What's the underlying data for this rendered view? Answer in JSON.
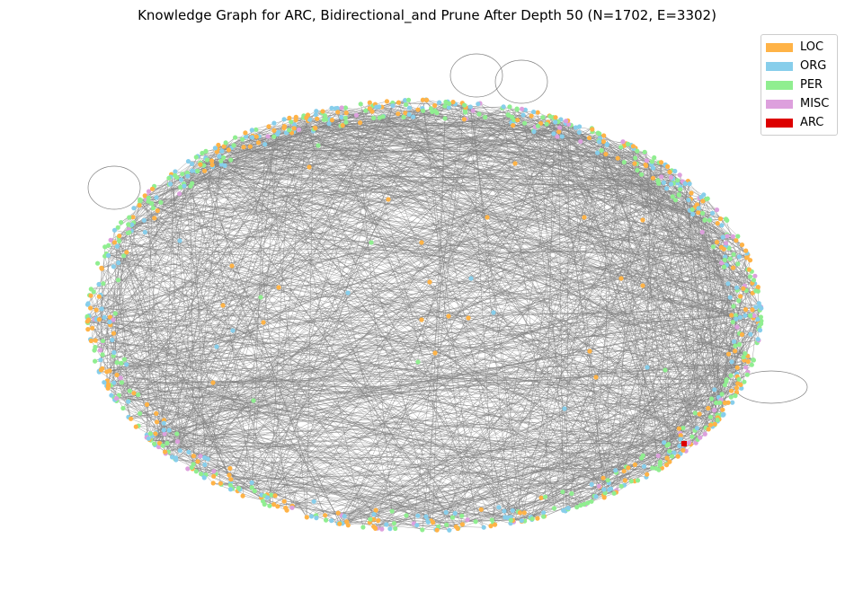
{
  "title": "Knowledge Graph for ARC, Bidirectional_and Prune After Depth 50 (N=1702, E=3302)",
  "graph": {
    "layout": "ellipse",
    "node_count": 1702,
    "edge_count": 3302,
    "edge_color": "#808080",
    "categories": [
      {
        "name": "LOC",
        "color": "#ffb347"
      },
      {
        "name": "ORG",
        "color": "#87ceeb"
      },
      {
        "name": "PER",
        "color": "#90ee90"
      },
      {
        "name": "MISC",
        "color": "#dda0dd"
      },
      {
        "name": "ARC",
        "color": "#dd0000"
      }
    ],
    "root_node": "ARC"
  },
  "legend": {
    "placement": "top-right",
    "items": [
      {
        "label": "LOC",
        "color": "#ffb347"
      },
      {
        "label": "ORG",
        "color": "#87ceeb"
      },
      {
        "label": "PER",
        "color": "#90ee90"
      },
      {
        "label": "MISC",
        "color": "#dda0dd"
      },
      {
        "label": "ARC",
        "color": "#dd0000"
      }
    ]
  }
}
